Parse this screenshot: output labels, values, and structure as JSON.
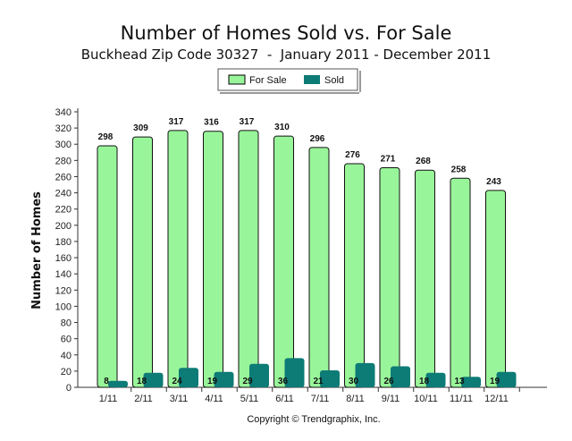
{
  "chart_data": {
    "type": "bar",
    "title": "Number of Homes Sold vs. For Sale",
    "subtitle": "Buckhead Zip Code 30327  -  January 2011 - December 2011",
    "xlabel": "",
    "ylabel": "Number of Homes",
    "ylim": [
      0,
      340
    ],
    "ytick_step": 20,
    "categories": [
      "1/11",
      "2/11",
      "3/11",
      "4/11",
      "5/11",
      "6/11",
      "7/11",
      "8/11",
      "9/11",
      "10/11",
      "11/11",
      "12/11"
    ],
    "series": [
      {
        "name": "For Sale",
        "color": "#99f59a",
        "values": [
          298,
          309,
          317,
          316,
          317,
          310,
          296,
          276,
          271,
          268,
          258,
          243
        ]
      },
      {
        "name": "Sold",
        "color": "#0d7b76",
        "values": [
          8,
          18,
          24,
          19,
          29,
          36,
          21,
          30,
          26,
          18,
          13,
          19
        ]
      }
    ],
    "legend": "top-center",
    "footer": "Copyright © Trendgraphix, Inc."
  }
}
